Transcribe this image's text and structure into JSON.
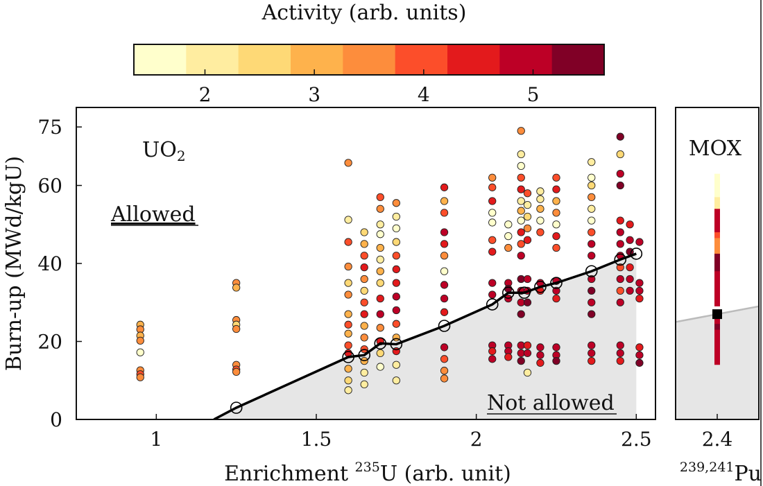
{
  "chart_data": [
    {
      "type": "scatter",
      "panel": "UO2",
      "panel_label": "UO",
      "panel_label_sub": "2",
      "xlabel_prefix": "Enrichment ",
      "xlabel_sup": "235",
      "xlabel_suffix": "U (arb. unit)",
      "ylabel": "Burn-up (MWd/kgU)",
      "xlim": [
        0.75,
        2.56
      ],
      "ylim": [
        0,
        80
      ],
      "xticks": [
        1,
        1.5,
        2,
        2.5
      ],
      "xtick_labels": [
        "1",
        "1.5",
        "2",
        "2.5"
      ],
      "yticks": [
        0,
        20,
        40,
        60,
        75
      ],
      "ytick_labels": [
        "0",
        "20",
        "40",
        "60",
        "75"
      ],
      "region_allowed": "Allowed",
      "region_not_allowed": "Not allowed",
      "limit_line": {
        "x": [
          1.18,
          1.25,
          1.6,
          1.65,
          1.7,
          1.75,
          1.9,
          2.05,
          2.1,
          2.15,
          2.2,
          2.25,
          2.36,
          2.45,
          2.5
        ],
        "y": [
          0,
          3,
          16,
          16.5,
          19.5,
          19.3,
          24,
          29.5,
          32.5,
          32.5,
          34,
          35,
          38,
          41,
          42.5
        ]
      },
      "limit_markers": {
        "x": [
          1.25,
          1.6,
          1.65,
          1.7,
          1.75,
          1.9,
          2.05,
          2.1,
          2.15,
          2.2,
          2.25,
          2.36,
          2.45,
          2.5
        ],
        "y": [
          3,
          16,
          16.5,
          19.5,
          19.3,
          24,
          29.5,
          32.5,
          32.5,
          34,
          35,
          38,
          41,
          42.5
        ]
      },
      "points": [
        [
          0.95,
          24.3,
          3.0
        ],
        [
          0.95,
          23.1,
          3.3
        ],
        [
          0.95,
          21.5,
          3.1
        ],
        [
          0.95,
          20.2,
          3.4
        ],
        [
          0.95,
          17.2,
          1.5
        ],
        [
          0.95,
          12.6,
          3.6
        ],
        [
          0.95,
          11.6,
          3.9
        ],
        [
          0.95,
          10.8,
          3.3
        ],
        [
          1.25,
          35.0,
          3.5
        ],
        [
          1.25,
          33.8,
          3.2
        ],
        [
          1.25,
          25.5,
          3.3
        ],
        [
          1.25,
          24.3,
          2.7
        ],
        [
          1.25,
          23.2,
          3.6
        ],
        [
          1.25,
          14.0,
          3.7
        ],
        [
          1.25,
          12.8,
          4.2
        ],
        [
          1.25,
          12.2,
          3.5
        ],
        [
          1.6,
          65.8,
          3.5
        ],
        [
          1.6,
          51.2,
          2.2
        ],
        [
          1.6,
          45.5,
          3.8
        ],
        [
          1.6,
          39.2,
          3.4
        ],
        [
          1.6,
          35.0,
          2.6
        ],
        [
          1.6,
          32.0,
          3.6
        ],
        [
          1.6,
          27.0,
          2.9
        ],
        [
          1.6,
          24.3,
          4.1
        ],
        [
          1.6,
          22.0,
          3.2
        ],
        [
          1.6,
          19.0,
          3.9
        ],
        [
          1.6,
          17.0,
          4.5
        ],
        [
          1.6,
          13.0,
          3.1
        ],
        [
          1.6,
          10.0,
          2.7
        ],
        [
          1.6,
          7.5,
          2.3
        ],
        [
          1.65,
          48.0,
          2.5
        ],
        [
          1.65,
          45.0,
          2.9
        ],
        [
          1.65,
          42.0,
          3.8
        ],
        [
          1.65,
          39.0,
          4.3
        ],
        [
          1.65,
          36.0,
          3.3
        ],
        [
          1.65,
          33.0,
          2.6
        ],
        [
          1.65,
          30.0,
          3.9
        ],
        [
          1.65,
          27.0,
          4.6
        ],
        [
          1.65,
          24.0,
          3.0
        ],
        [
          1.65,
          21.0,
          3.7
        ],
        [
          1.65,
          18.0,
          4.2
        ],
        [
          1.65,
          15.0,
          2.9
        ],
        [
          1.65,
          12.0,
          2.2
        ],
        [
          1.65,
          9.0,
          1.9
        ],
        [
          1.7,
          57.0,
          4.0
        ],
        [
          1.7,
          54.0,
          3.6
        ],
        [
          1.7,
          50.0,
          2.2
        ],
        [
          1.7,
          47.5,
          1.7
        ],
        [
          1.7,
          44.0,
          2.8
        ],
        [
          1.7,
          41.0,
          1.9
        ],
        [
          1.7,
          38.0,
          3.2
        ],
        [
          1.7,
          35.0,
          2.4
        ],
        [
          1.7,
          31.0,
          4.4
        ],
        [
          1.7,
          27.0,
          4.8
        ],
        [
          1.7,
          23.5,
          3.6
        ],
        [
          1.7,
          20.0,
          4.5
        ],
        [
          1.7,
          17.0,
          2.4
        ],
        [
          1.7,
          13.5,
          1.8
        ],
        [
          1.75,
          55.5,
          3.7
        ],
        [
          1.75,
          52.0,
          2.1
        ],
        [
          1.75,
          49.0,
          1.6
        ],
        [
          1.75,
          45.5,
          2.6
        ],
        [
          1.75,
          42.0,
          3.9
        ],
        [
          1.75,
          38.5,
          4.5
        ],
        [
          1.75,
          35.0,
          4.3
        ],
        [
          1.75,
          31.5,
          5.0
        ],
        [
          1.75,
          28.0,
          4.7
        ],
        [
          1.75,
          24.5,
          4.2
        ],
        [
          1.75,
          21.0,
          3.1
        ],
        [
          1.75,
          17.5,
          4.4
        ],
        [
          1.75,
          14.0,
          2.3
        ],
        [
          1.75,
          10.0,
          1.9
        ],
        [
          1.9,
          59.5,
          4.6
        ],
        [
          1.9,
          56.0,
          3.1
        ],
        [
          1.9,
          53.0,
          4.0
        ],
        [
          1.9,
          48.0,
          4.7
        ],
        [
          1.9,
          45.0,
          4.3
        ],
        [
          1.9,
          42.0,
          3.5
        ],
        [
          1.9,
          38.0,
          1.8
        ],
        [
          1.9,
          34.5,
          4.9
        ],
        [
          1.9,
          31.0,
          5.1
        ],
        [
          1.9,
          27.5,
          4.5
        ],
        [
          1.9,
          18.5,
          4.8
        ],
        [
          1.9,
          15.5,
          4.0
        ],
        [
          1.9,
          12.5,
          3.6
        ],
        [
          1.9,
          10.5,
          3.3
        ],
        [
          2.05,
          62.0,
          3.6
        ],
        [
          2.05,
          59.5,
          4.0
        ],
        [
          2.05,
          56.0,
          4.4
        ],
        [
          2.05,
          53.0,
          1.6
        ],
        [
          2.05,
          50.5,
          1.7
        ],
        [
          2.05,
          46.0,
          4.2
        ],
        [
          2.05,
          43.0,
          4.6
        ],
        [
          2.05,
          35.0,
          4.9
        ],
        [
          2.05,
          32.0,
          5.0
        ],
        [
          2.05,
          19.0,
          4.8
        ],
        [
          2.05,
          17.5,
          4.5
        ],
        [
          2.05,
          15.5,
          5.1
        ],
        [
          2.1,
          50.0,
          1.5
        ],
        [
          2.1,
          47.0,
          1.6
        ],
        [
          2.1,
          44.0,
          3.4
        ],
        [
          2.1,
          35.0,
          4.8
        ],
        [
          2.1,
          33.5,
          5.2
        ],
        [
          2.1,
          31.0,
          4.9
        ],
        [
          2.1,
          19.0,
          4.7
        ],
        [
          2.1,
          17.5,
          5.1
        ],
        [
          2.1,
          16.0,
          4.6
        ],
        [
          2.14,
          74.0,
          3.4
        ],
        [
          2.14,
          68.0,
          2.0
        ],
        [
          2.14,
          65.0,
          1.7
        ],
        [
          2.14,
          62.0,
          4.2
        ],
        [
          2.14,
          59.0,
          4.6
        ],
        [
          2.14,
          56.0,
          2.1
        ],
        [
          2.14,
          53.5,
          2.8
        ],
        [
          2.14,
          51.0,
          1.6
        ],
        [
          2.14,
          48.0,
          4.5
        ],
        [
          2.14,
          45.0,
          4.2
        ],
        [
          2.14,
          42.0,
          4.9
        ],
        [
          2.14,
          36.0,
          5.3
        ],
        [
          2.14,
          33.0,
          5.1
        ],
        [
          2.14,
          30.0,
          4.9
        ],
        [
          2.14,
          27.0,
          5.4
        ],
        [
          2.14,
          19.0,
          4.8
        ],
        [
          2.14,
          17.0,
          5.0
        ],
        [
          2.14,
          15.0,
          5.2
        ],
        [
          2.16,
          58.0,
          4.0
        ],
        [
          2.16,
          55.0,
          1.9
        ],
        [
          2.16,
          52.0,
          2.6
        ],
        [
          2.16,
          49.0,
          3.3
        ],
        [
          2.16,
          46.0,
          4.3
        ],
        [
          2.16,
          36.0,
          5.0
        ],
        [
          2.16,
          33.0,
          4.7
        ],
        [
          2.16,
          30.0,
          5.3
        ],
        [
          2.16,
          19.0,
          4.6
        ],
        [
          2.16,
          17.0,
          4.9
        ],
        [
          2.16,
          12.0,
          1.9
        ],
        [
          2.2,
          58.5,
          2.2
        ],
        [
          2.2,
          56.5,
          1.9
        ],
        [
          2.2,
          54.0,
          3.0
        ],
        [
          2.2,
          51.0,
          1.7
        ],
        [
          2.2,
          48.0,
          4.1
        ],
        [
          2.2,
          35.0,
          5.1
        ],
        [
          2.2,
          33.0,
          4.6
        ],
        [
          2.2,
          18.5,
          4.8
        ],
        [
          2.2,
          16.5,
          5.0
        ],
        [
          2.2,
          14.5,
          4.3
        ],
        [
          2.25,
          62.0,
          4.1
        ],
        [
          2.25,
          59.0,
          4.4
        ],
        [
          2.25,
          56.0,
          2.8
        ],
        [
          2.25,
          53.0,
          3.4
        ],
        [
          2.25,
          50.0,
          1.7
        ],
        [
          2.25,
          47.0,
          4.6
        ],
        [
          2.25,
          44.0,
          4.0
        ],
        [
          2.25,
          35.5,
          4.8
        ],
        [
          2.25,
          33.0,
          5.0
        ],
        [
          2.25,
          31.0,
          4.5
        ],
        [
          2.25,
          18.5,
          4.7
        ],
        [
          2.25,
          16.5,
          5.0
        ],
        [
          2.25,
          15.0,
          5.3
        ],
        [
          2.36,
          66.0,
          1.9
        ],
        [
          2.36,
          62.0,
          1.7
        ],
        [
          2.36,
          60.0,
          2.4
        ],
        [
          2.36,
          57.0,
          3.4
        ],
        [
          2.36,
          54.0,
          2.0
        ],
        [
          2.36,
          51.0,
          1.7
        ],
        [
          2.36,
          48.0,
          4.0
        ],
        [
          2.36,
          45.0,
          4.7
        ],
        [
          2.36,
          42.0,
          5.0
        ],
        [
          2.36,
          36.0,
          4.8
        ],
        [
          2.36,
          33.0,
          5.2
        ],
        [
          2.36,
          30.0,
          5.0
        ],
        [
          2.36,
          27.0,
          5.4
        ],
        [
          2.36,
          19.0,
          4.8
        ],
        [
          2.36,
          17.0,
          5.1
        ],
        [
          2.36,
          15.0,
          4.6
        ],
        [
          2.45,
          72.5,
          5.3
        ],
        [
          2.45,
          68.0,
          2.4
        ],
        [
          2.45,
          63.0,
          4.9
        ],
        [
          2.45,
          60.0,
          5.2
        ],
        [
          2.45,
          51.0,
          4.6
        ],
        [
          2.45,
          48.0,
          5.1
        ],
        [
          2.45,
          45.0,
          4.8
        ],
        [
          2.45,
          42.0,
          5.0
        ],
        [
          2.45,
          39.0,
          3.8
        ],
        [
          2.45,
          36.0,
          4.7
        ],
        [
          2.45,
          33.0,
          4.2
        ],
        [
          2.45,
          30.0,
          5.1
        ],
        [
          2.45,
          19.0,
          4.7
        ],
        [
          2.45,
          17.0,
          5.0
        ],
        [
          2.45,
          15.0,
          4.4
        ],
        [
          2.48,
          50.0,
          4.5
        ],
        [
          2.48,
          46.0,
          4.9
        ],
        [
          2.48,
          43.0,
          5.2
        ],
        [
          2.48,
          39.0,
          4.6
        ],
        [
          2.48,
          36.0,
          5.0
        ],
        [
          2.48,
          33.0,
          4.8
        ],
        [
          2.51,
          45.5,
          4.7
        ],
        [
          2.51,
          35.0,
          5.1
        ],
        [
          2.51,
          33.0,
          4.8
        ],
        [
          2.51,
          31.0,
          4.5
        ],
        [
          2.51,
          18.5,
          4.6
        ],
        [
          2.51,
          16.5,
          4.9
        ],
        [
          2.51,
          14.5,
          5.3
        ]
      ]
    },
    {
      "type": "scatter",
      "panel": "MOX",
      "panel_label": "MOX",
      "xlabel_sup": "239,241",
      "xlabel_suffix": "Pu",
      "xlim": [
        2.35,
        2.45
      ],
      "ylim": [
        0,
        80
      ],
      "xticks": [
        2.4
      ],
      "xtick_labels": [
        "2.4"
      ],
      "limit_line": {
        "x": [
          2.35,
          2.45
        ],
        "y": [
          25,
          29
        ]
      },
      "limit_marker": {
        "x": 2.4,
        "y": 27
      },
      "points": [
        [
          2.4,
          58.5,
          1.5
        ],
        [
          2.4,
          57.0,
          1.6
        ],
        [
          2.4,
          55.5,
          1.8
        ],
        [
          2.4,
          54.0,
          1.7
        ],
        [
          2.4,
          52.5,
          2.0
        ],
        [
          2.4,
          51.0,
          1.9
        ],
        [
          2.4,
          49.5,
          5.0
        ],
        [
          2.4,
          48.0,
          4.8
        ],
        [
          2.4,
          46.5,
          5.1
        ],
        [
          2.4,
          45.0,
          4.7
        ],
        [
          2.4,
          43.5,
          3.9
        ],
        [
          2.4,
          42.0,
          3.4
        ],
        [
          2.4,
          38.0,
          5.2
        ],
        [
          2.4,
          36.5,
          5.4
        ],
        [
          2.4,
          35.0,
          5.3
        ],
        [
          2.4,
          33.5,
          5.1
        ],
        [
          2.4,
          21.5,
          5.1
        ],
        [
          2.4,
          20.0,
          5.3
        ],
        [
          2.4,
          18.5,
          5.0
        ]
      ]
    }
  ],
  "colorbar": {
    "title": "Activity (arb. units)",
    "range": [
      1.35,
      5.65
    ],
    "ticks": [
      2,
      3,
      4,
      5
    ],
    "tick_labels": [
      "2",
      "3",
      "4",
      "5"
    ],
    "colors": [
      "#ffffcc",
      "#ffeda0",
      "#fed976",
      "#feb24c",
      "#fd8d3c",
      "#fc4e2a",
      "#e31a1c",
      "#bd0026",
      "#800026"
    ]
  }
}
